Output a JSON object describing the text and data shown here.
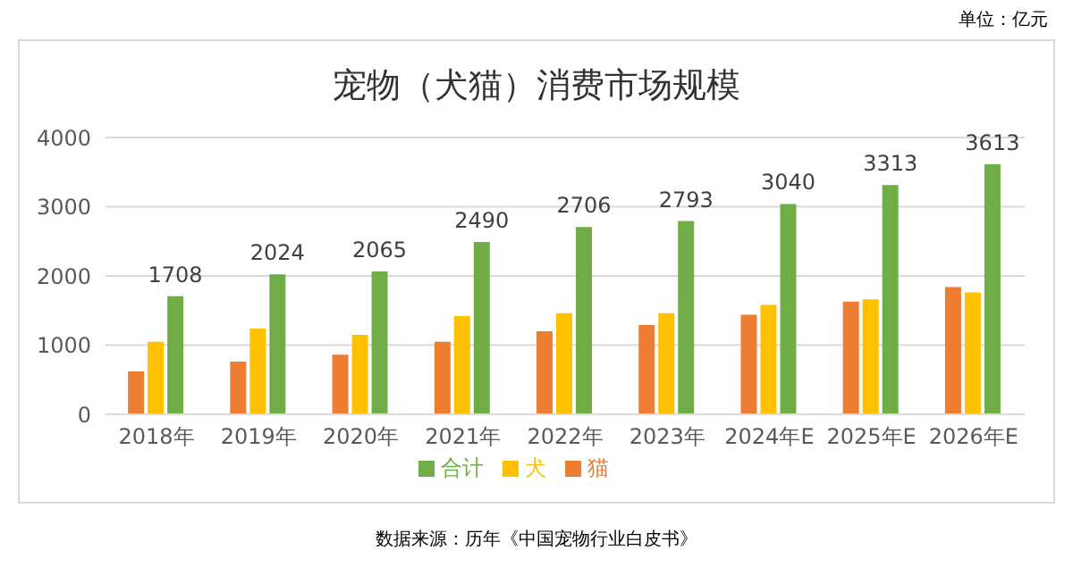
{
  "chart_data": {
    "type": "bar",
    "title": "宠物（犬猫）消费市场规模",
    "categories": [
      "2018年",
      "2019年",
      "2020年",
      "2021年",
      "2022年",
      "2023年",
      "2024年E",
      "2025年E",
      "2026年E"
    ],
    "series": [
      {
        "name": "猫",
        "color": "#ed7d31",
        "values": [
          620,
          760,
          860,
          1050,
          1200,
          1290,
          1440,
          1630,
          1840
        ]
      },
      {
        "name": "犬",
        "color": "#ffc000",
        "values": [
          1050,
          1240,
          1150,
          1420,
          1460,
          1460,
          1580,
          1660,
          1760
        ]
      },
      {
        "name": "合计",
        "color": "#70ad47",
        "values": [
          1708,
          2024,
          2065,
          2490,
          2706,
          2793,
          3040,
          3313,
          3613
        ],
        "value_labels": [
          "1708",
          "2024",
          "2065",
          "2490",
          "2706",
          "2793",
          "3040",
          "3313",
          "3613"
        ]
      }
    ],
    "ylim": [
      0,
      4000
    ],
    "yticks": [
      0,
      1000,
      2000,
      3000,
      4000
    ],
    "grid": "y",
    "legend": "bottom",
    "annotations": [
      "单位：亿元",
      "数据来源：历年《中国宠物行业白皮书》"
    ]
  }
}
